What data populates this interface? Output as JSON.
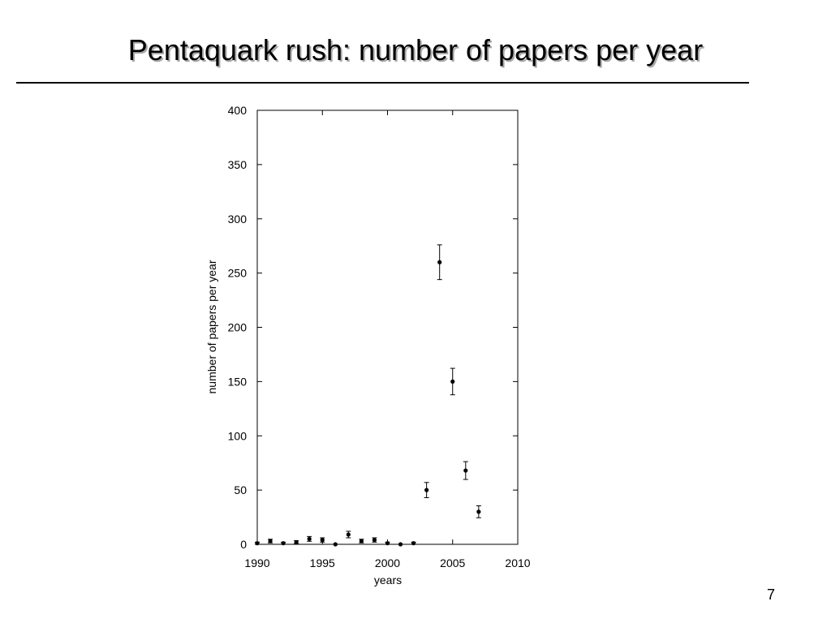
{
  "slide": {
    "title": "Pentaquark rush: number of papers per year",
    "page_number": "7"
  },
  "chart_data": {
    "type": "scatter",
    "title": "",
    "xlabel": "years",
    "ylabel": "number of papers per year",
    "xlim": [
      1990,
      2010
    ],
    "ylim": [
      0,
      400
    ],
    "x_ticks": [
      "1990",
      "1995",
      "2000",
      "2005",
      "2010"
    ],
    "y_ticks": [
      "0",
      "50",
      "100",
      "150",
      "200",
      "250",
      "300",
      "350",
      "400"
    ],
    "grid": false,
    "legend": "none",
    "series": [
      {
        "marker": "filled-circle",
        "color": "#000000",
        "error_bars": true,
        "x": [
          1990,
          1991,
          1992,
          1993,
          1994,
          1995,
          1996,
          1997,
          1998,
          1999,
          2000,
          2001,
          2002,
          2003,
          2004,
          2005,
          2006,
          2007
        ],
        "y": [
          1,
          3,
          1,
          2,
          5,
          4,
          0,
          9,
          3,
          4,
          1,
          0,
          1,
          50,
          260,
          150,
          68,
          30
        ],
        "err": [
          1,
          1.7,
          1,
          1.4,
          2.2,
          2,
          0,
          3,
          1.7,
          2,
          1,
          0,
          1,
          7,
          16,
          12.2,
          8.2,
          5.5
        ]
      }
    ]
  }
}
